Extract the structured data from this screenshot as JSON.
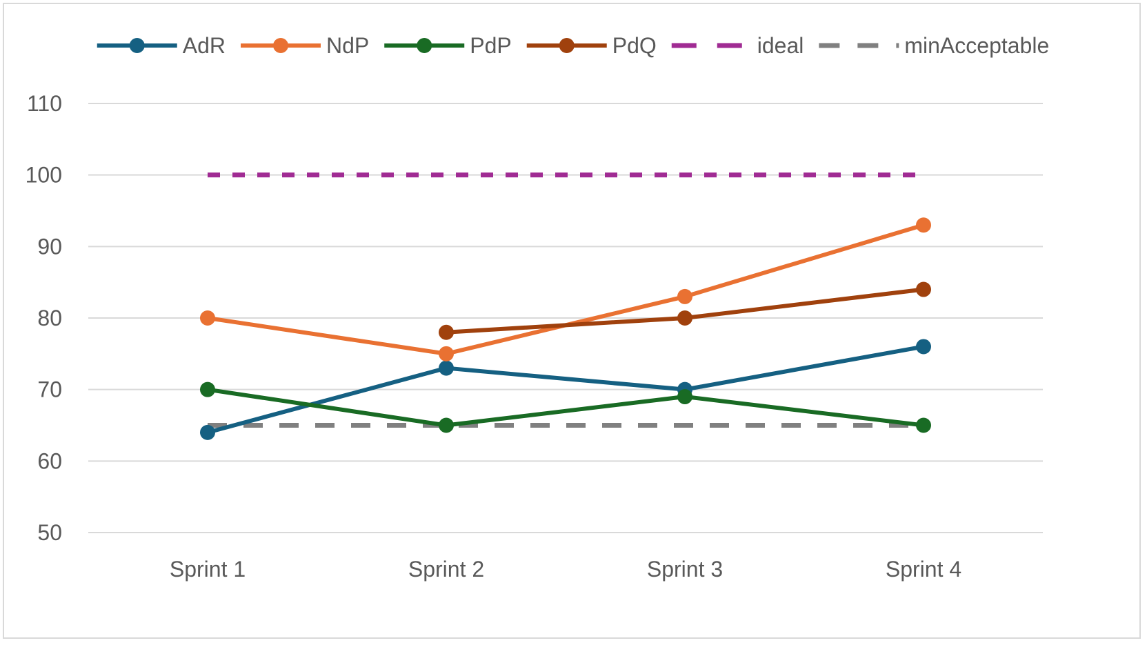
{
  "chart_data": {
    "type": "line",
    "title": "",
    "xlabel": "",
    "ylabel": "",
    "categories": [
      "Sprint 1",
      "Sprint 2",
      "Sprint 3",
      "Sprint 4"
    ],
    "ylim": [
      50,
      110
    ],
    "yticks": [
      50,
      60,
      70,
      80,
      90,
      100,
      110
    ],
    "grid": true,
    "legend_position": "top",
    "series": [
      {
        "name": "AdR",
        "values": [
          64,
          73,
          70,
          76
        ],
        "color": "#156082",
        "style": "solid",
        "markers": true
      },
      {
        "name": "NdP",
        "values": [
          80,
          75,
          83,
          93
        ],
        "color": "#e97132",
        "style": "solid",
        "markers": true
      },
      {
        "name": "PdP",
        "values": [
          70,
          65,
          69,
          65
        ],
        "color": "#196b24",
        "style": "solid",
        "markers": true
      },
      {
        "name": "PdQ",
        "values": [
          null,
          78,
          80,
          84
        ],
        "color": "#a0410d",
        "style": "solid",
        "markers": true
      },
      {
        "name": "ideal",
        "values": [
          100,
          100,
          100,
          100
        ],
        "color": "#a02b93",
        "style": "dashed",
        "markers": false
      },
      {
        "name": "minAcceptable",
        "values": [
          65,
          65,
          65,
          65
        ],
        "color": "#808080",
        "style": "long-dashed",
        "markers": false
      }
    ]
  }
}
